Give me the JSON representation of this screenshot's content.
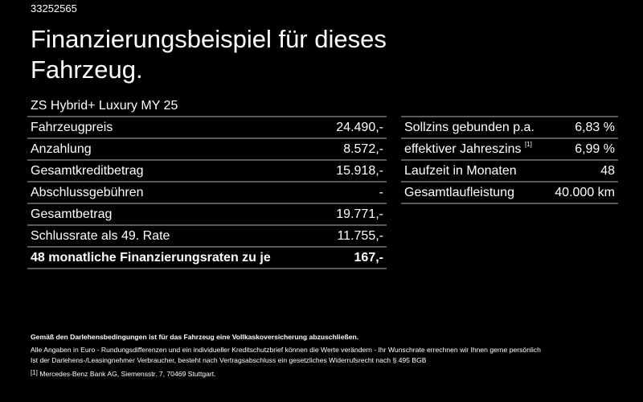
{
  "id": "33252565",
  "title": "Finanzierungsbeispiel für dieses Fahrzeug.",
  "model": "ZS Hybrid+ Luxury MY 25",
  "left_rows": [
    {
      "label": "Fahrzeugpreis",
      "value": "24.490,-"
    },
    {
      "label": "Anzahlung",
      "value": "8.572,-"
    },
    {
      "label": "Gesamtkreditbetrag",
      "value": "15.918,-"
    },
    {
      "label": "Abschlussgebühren",
      "value": "-"
    },
    {
      "label": "Gesamtbetrag",
      "value": "19.771,-"
    },
    {
      "label": "Schlussrate als 49. Rate",
      "value": "11.755,-"
    },
    {
      "label": "48 monatliche Finanzierungsraten zu je",
      "value": "167,-"
    }
  ],
  "right_rows": [
    {
      "label": "Sollzins gebunden p.a.",
      "value": "6,83 %"
    },
    {
      "label": "effektiver Jahreszins",
      "sup": "[1]",
      "value": "6,99 %"
    },
    {
      "label": "Laufzeit in Monaten",
      "value": "48"
    },
    {
      "label": "Gesamtlaufleistung",
      "value": "40.000 km"
    }
  ],
  "notes": {
    "bold": "Gemäß den Darlehensbedingungen ist für das Fahrzeug eine Vollkaskoversicherung abzuschließen.",
    "line1": "Alle Angaben in Euro - Rundungsdifferenzen und ein individueller Kreditschutzbrief können die Werte verändern - Ihr Wunschrate errechnen wir Ihnen gerne persönlich",
    "line2": "Ist der Darlehens-/Leasingnehmer Verbraucher, besteht nach Vertragsabschluss ein gesetzliches Widerrufsrecht nach § 495 BGB",
    "fn_mark": "[1]",
    "fn_text": "Mercedes-Benz Bank AG, Siemensstr. 7, 70469 Stuttgart."
  }
}
